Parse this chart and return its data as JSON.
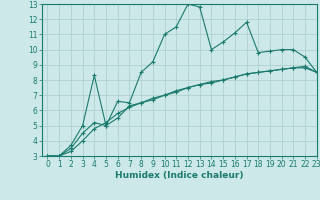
{
  "xlabel": "Humidex (Indice chaleur)",
  "xlim": [
    -0.5,
    23
  ],
  "ylim": [
    3,
    13
  ],
  "xticks": [
    0,
    1,
    2,
    3,
    4,
    5,
    6,
    7,
    8,
    9,
    10,
    11,
    12,
    13,
    14,
    15,
    16,
    17,
    18,
    19,
    20,
    21,
    22,
    23
  ],
  "yticks": [
    3,
    4,
    5,
    6,
    7,
    8,
    9,
    10,
    11,
    12,
    13
  ],
  "line_color": "#1a7a6e",
  "bg_color": "#cce8e8",
  "grid_color": "#aacccc",
  "line1_x": [
    0,
    1,
    2,
    3,
    4,
    5,
    6,
    7,
    8,
    9,
    10,
    11,
    12,
    13,
    14,
    15,
    16,
    17,
    18,
    19,
    20,
    21,
    22,
    23
  ],
  "line1_y": [
    3.0,
    3.0,
    3.7,
    5.0,
    8.3,
    5.0,
    6.6,
    6.5,
    8.5,
    9.2,
    11.0,
    11.5,
    13.0,
    12.8,
    10.0,
    10.5,
    11.1,
    11.8,
    9.8,
    9.9,
    10.0,
    10.0,
    9.5,
    8.5
  ],
  "line2_x": [
    0,
    1,
    2,
    3,
    4,
    5,
    6,
    7,
    8,
    9,
    10,
    11,
    12,
    13,
    14,
    15,
    16,
    17,
    18,
    19,
    20,
    21,
    22,
    23
  ],
  "line2_y": [
    3.0,
    3.0,
    3.5,
    4.5,
    5.2,
    5.0,
    5.5,
    6.3,
    6.5,
    6.7,
    7.0,
    7.3,
    7.5,
    7.7,
    7.8,
    8.0,
    8.2,
    8.4,
    8.5,
    8.6,
    8.7,
    8.8,
    8.8,
    8.5
  ],
  "line3_x": [
    0,
    1,
    2,
    3,
    4,
    5,
    6,
    7,
    8,
    9,
    10,
    11,
    12,
    13,
    14,
    15,
    16,
    17,
    18,
    19,
    20,
    21,
    22,
    23
  ],
  "line3_y": [
    3.0,
    3.0,
    3.3,
    4.0,
    4.8,
    5.2,
    5.8,
    6.2,
    6.5,
    6.8,
    7.0,
    7.2,
    7.5,
    7.7,
    7.9,
    8.0,
    8.2,
    8.4,
    8.5,
    8.6,
    8.7,
    8.8,
    8.9,
    8.5
  ]
}
